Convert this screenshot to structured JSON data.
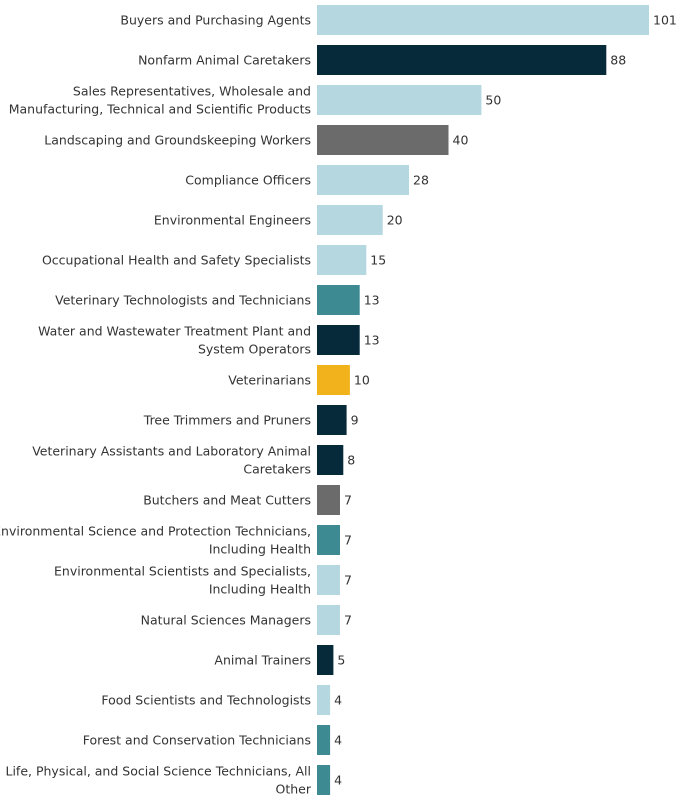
{
  "chart_data": {
    "type": "bar",
    "orientation": "horizontal",
    "title": "",
    "xlabel": "",
    "ylabel": "",
    "xlim": [
      0,
      101
    ],
    "grid": false,
    "legend": "none",
    "categories": [
      "Buyers and Purchasing Agents",
      "Nonfarm Animal Caretakers",
      "Sales Representatives, Wholesale and Manufacturing, Technical and Scientific Products",
      "Landscaping and Groundskeeping Workers",
      "Compliance Officers",
      "Environmental Engineers",
      "Occupational Health and Safety Specialists",
      "Veterinary Technologists and Technicians",
      "Water and Wastewater Treatment Plant and System Operators",
      "Veterinarians",
      "Tree Trimmers and Pruners",
      "Veterinary Assistants and Laboratory Animal Caretakers",
      "Butchers and Meat Cutters",
      "Environmental Science and Protection Technicians, Including Health",
      "Environmental Scientists and Specialists, Including Health",
      "Natural Sciences Managers",
      "Animal Trainers",
      "Food Scientists and Technologists",
      "Forest and Conservation Technicians",
      "Life, Physical, and Social Science Technicians, All Other"
    ],
    "label_lines": [
      [
        "Buyers and Purchasing Agents"
      ],
      [
        "Nonfarm Animal Caretakers"
      ],
      [
        "Sales Representatives, Wholesale and",
        "Manufacturing, Technical and Scientific Products"
      ],
      [
        "Landscaping and Groundskeeping Workers"
      ],
      [
        "Compliance Officers"
      ],
      [
        "Environmental Engineers"
      ],
      [
        "Occupational Health and Safety Specialists"
      ],
      [
        "Veterinary Technologists and Technicians"
      ],
      [
        "Water and Wastewater Treatment Plant and",
        "System Operators"
      ],
      [
        "Veterinarians"
      ],
      [
        "Tree Trimmers and Pruners"
      ],
      [
        "Veterinary Assistants and Laboratory Animal",
        "Caretakers"
      ],
      [
        "Butchers and Meat Cutters"
      ],
      [
        "Environmental Science and Protection Technicians,",
        "Including Health"
      ],
      [
        "Environmental Scientists and Specialists,",
        "Including Health"
      ],
      [
        "Natural Sciences Managers"
      ],
      [
        "Animal Trainers"
      ],
      [
        "Food Scientists and Technologists"
      ],
      [
        "Forest and Conservation Technicians"
      ],
      [
        "Life, Physical, and Social Science Technicians, All",
        "Other"
      ]
    ],
    "values": [
      101,
      88,
      50,
      40,
      28,
      20,
      15,
      13,
      13,
      10,
      9,
      8,
      7,
      7,
      7,
      7,
      5,
      4,
      4,
      4
    ],
    "value_labels": [
      "101",
      "88",
      "50",
      "40",
      "28",
      "20",
      "15",
      "13",
      "13",
      "10",
      "9",
      "8",
      "7",
      "7",
      "7",
      "7",
      "5",
      "4",
      "4",
      "4"
    ],
    "bar_colors": [
      "#b5d7df",
      "#062a3a",
      "#b5d7df",
      "#6b6b6b",
      "#b5d7df",
      "#b5d7df",
      "#b5d7df",
      "#3d8a93",
      "#062a3a",
      "#f2b21b",
      "#062a3a",
      "#062a3a",
      "#6b6b6b",
      "#3d8a93",
      "#b5d7df",
      "#b5d7df",
      "#062a3a",
      "#b5d7df",
      "#3d8a93",
      "#3d8a93"
    ],
    "text_color": "#333333"
  }
}
